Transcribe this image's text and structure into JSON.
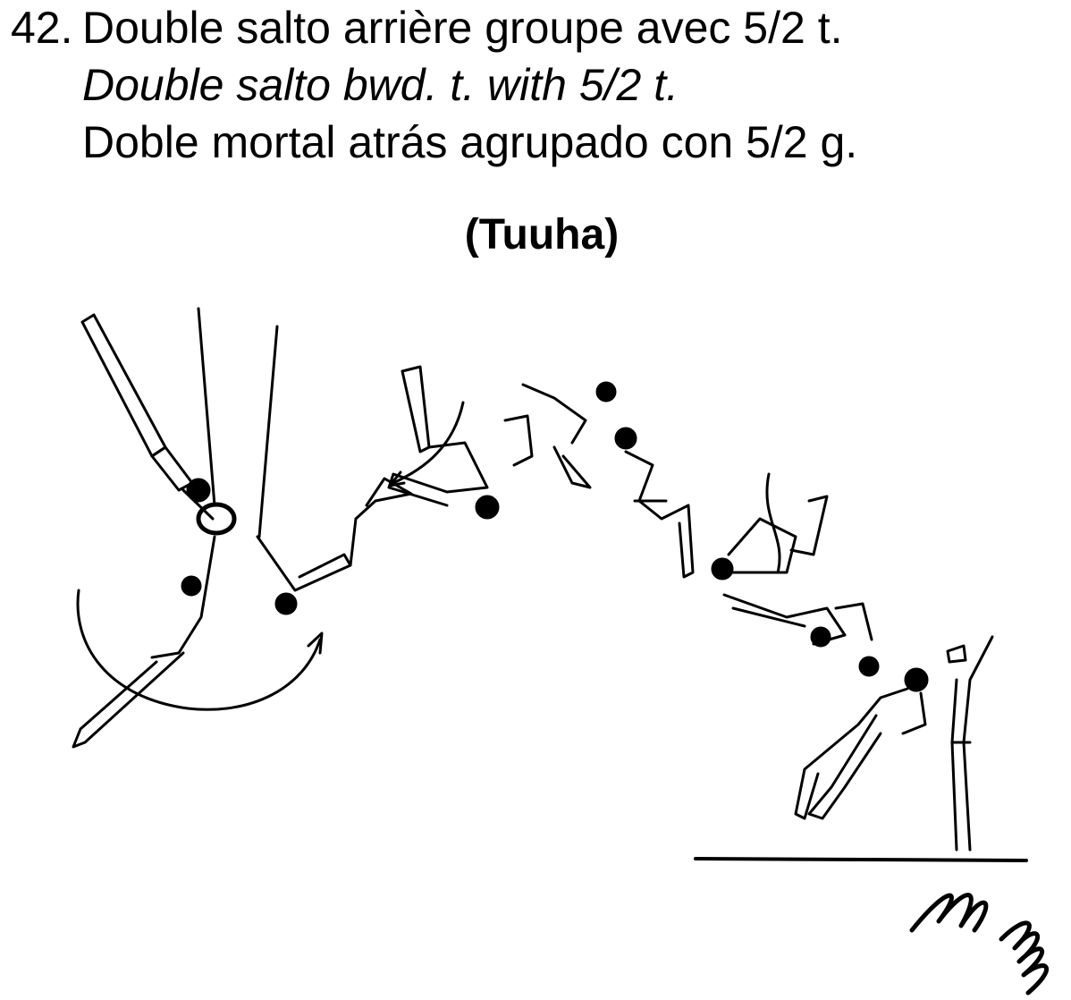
{
  "element": {
    "number": "42.",
    "name_fr": "Double salto arrière groupe avec 5/2 t.",
    "name_en": "Double salto bwd. t. with 5/2 t.",
    "name_es": "Doble mortal atrás agrupado con 5/2 g.",
    "named_after": "(Tuuha)"
  },
  "illustration": {
    "apparatus": "rings",
    "figure_count": 10,
    "icons": [
      "rings-apparatus-icon",
      "landing-mat-icon",
      "spring-icon",
      "rotation-arrow-icon",
      "twist-arrow-icon"
    ]
  }
}
